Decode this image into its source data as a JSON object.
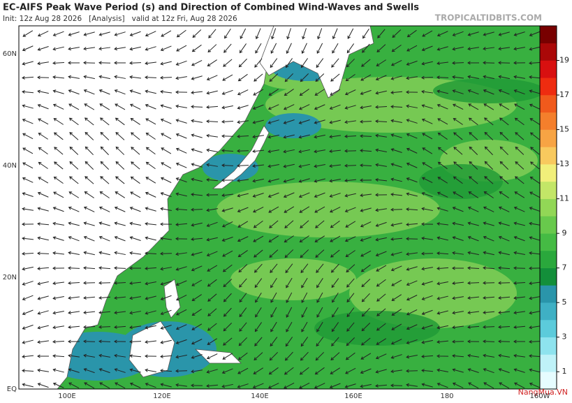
{
  "header": {
    "title": "EC-AIFS Peak Wave Period (s) and Direction of Combined Wind-Waves and Swells",
    "init": "Init: 12z Aug 28 2026   [Analysis]   valid at 12z Fri, Aug 28 2026",
    "source": "TROPICALTIDBITS.COM"
  },
  "axes": {
    "lat_labels": [
      "60N",
      "40N",
      "20N",
      "EQ"
    ],
    "lon_labels": [
      "100E",
      "120E",
      "140E",
      "160E",
      "180",
      "160W"
    ]
  },
  "colorbar": {
    "labels": [
      1,
      3,
      5,
      7,
      9,
      11,
      13,
      15,
      17,
      19
    ],
    "colors": [
      "#e6fcff",
      "#bff2f8",
      "#8ee3ee",
      "#5ccbdb",
      "#3fb0c4",
      "#2a95aa",
      "#138f3a",
      "#2aa83c",
      "#45bb44",
      "#68c94c",
      "#92d756",
      "#c3e667",
      "#f1ef7a",
      "#f8c95e",
      "#f7a444",
      "#f47f2c",
      "#f05a1c",
      "#ee2c10",
      "#d81010",
      "#aa0808",
      "#780000"
    ],
    "watermark": "NangMua.VN"
  }
}
